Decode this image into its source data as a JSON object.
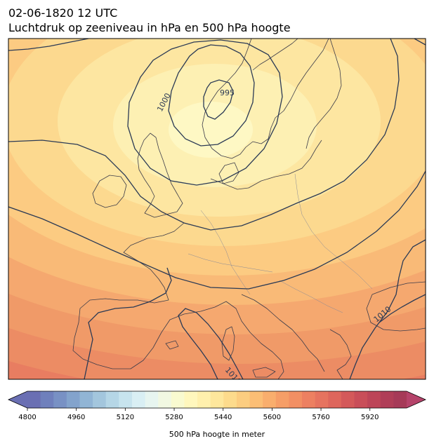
{
  "title": {
    "line1": "02-06-1820 12 UTC",
    "line2": "Luchtdruk op zeeniveau in hPa en 500 hPa hoogte"
  },
  "map": {
    "region": "Europe",
    "field_colors": [
      "#fef8c4",
      "#fdf0b3",
      "#fde6a1",
      "#fcd98f",
      "#fccb82",
      "#f9ba77",
      "#f5a86f",
      "#f09a68",
      "#ec8c64",
      "#e87d61"
    ],
    "isobar_color": "#2b3a55",
    "coast_color": "#3c3c4a",
    "isobar_labels": [
      {
        "text": "1000"
      },
      {
        "text": "995"
      },
      {
        "text": "1010"
      },
      {
        "text": "1010"
      }
    ]
  },
  "colorbar": {
    "min": 4800,
    "max": 6040,
    "step": 40,
    "ticks": [
      "4800",
      "4960",
      "5120",
      "5280",
      "5440",
      "5600",
      "5760",
      "5920"
    ],
    "label": "500 hPa hoogte in meter",
    "colors": [
      "#6a6fb3",
      "#6f80bc",
      "#7891c4",
      "#83a3cc",
      "#91b5d5",
      "#a3c6dd",
      "#b5d6e6",
      "#c7e4ee",
      "#d9eff4",
      "#e7f5f0",
      "#f1f8e2",
      "#f9fad0",
      "#fff7bd",
      "#fff0ad",
      "#fee79c",
      "#fddb8c",
      "#fccd80",
      "#fbbe75",
      "#f9ae6d",
      "#f69e67",
      "#f28f63",
      "#ed8061",
      "#e6735f",
      "#de665c",
      "#d4595a",
      "#c94e59",
      "#bd4558",
      "#b03e58",
      "#a63a58"
    ],
    "extend_low_color": "#6a6fb3",
    "extend_high_color": "#b5436a"
  }
}
